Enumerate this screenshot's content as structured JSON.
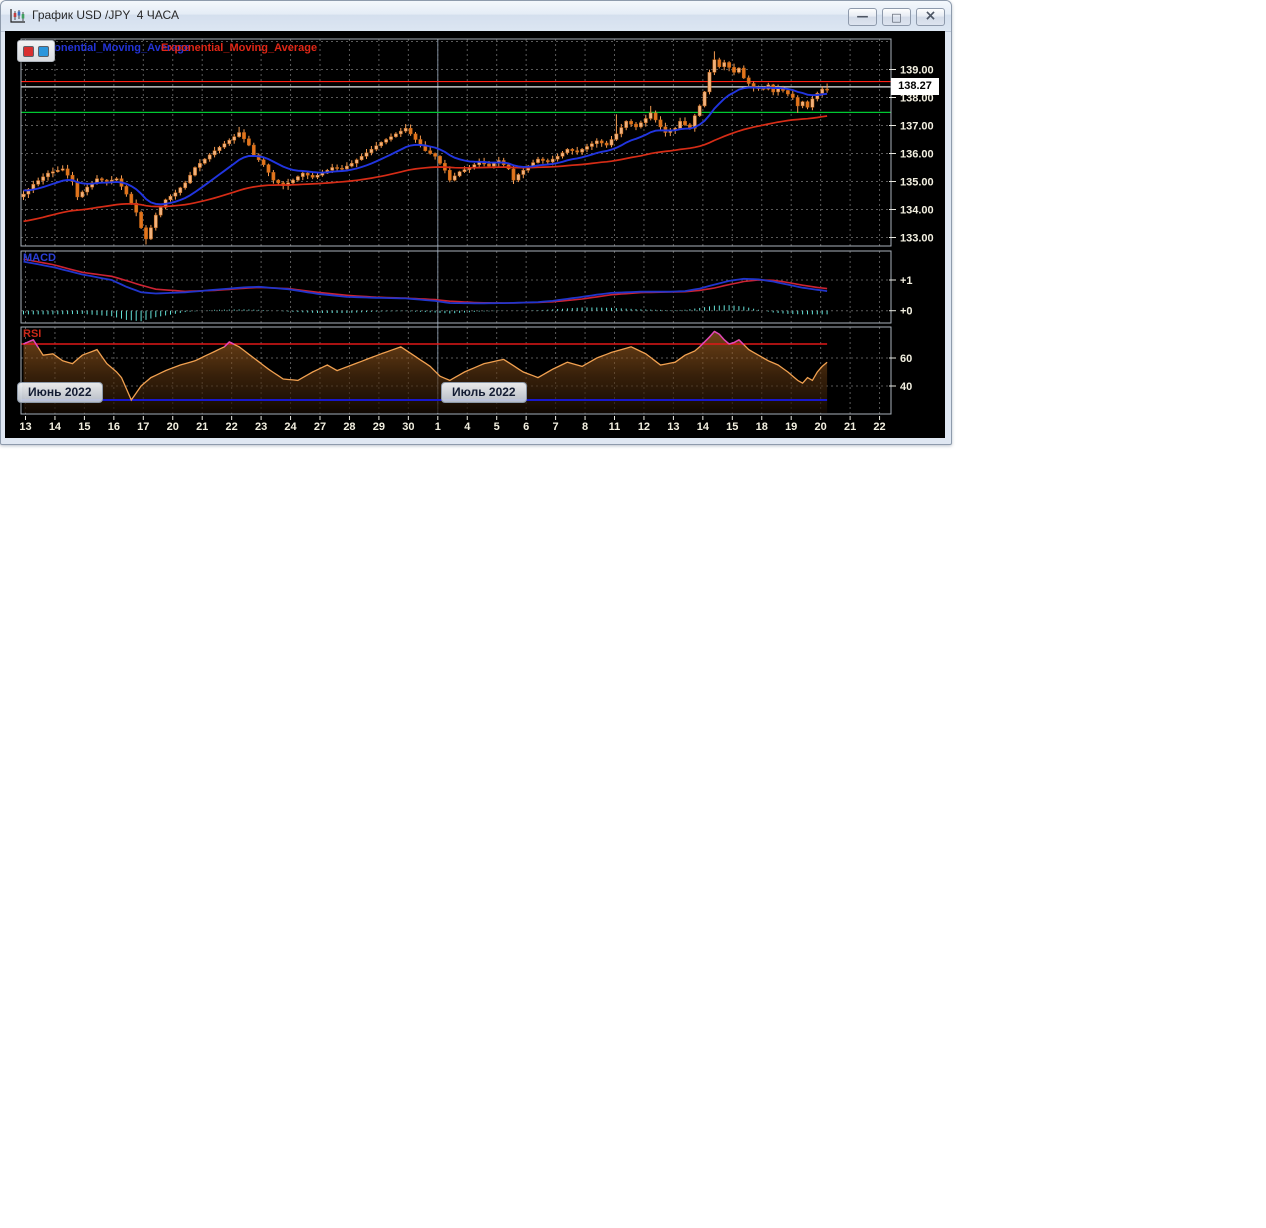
{
  "window": {
    "title": "График USD /JPY  4 ЧАСА",
    "icons": {
      "app": "candlestick-chart",
      "minimize": "—",
      "maximize": "□",
      "close": "×"
    }
  },
  "legend": {
    "items": [
      {
        "label": "Exponential_Moving_Average",
        "color": "#2233d8"
      },
      {
        "label": "Exponential_Moving_Average",
        "color": "#e02616"
      }
    ]
  },
  "mini_toolbar": {
    "buttons": [
      {
        "name": "red-marker",
        "color": "#d83030"
      },
      {
        "name": "blue-marker",
        "color": "#2a96dc"
      }
    ]
  },
  "pane_labels": {
    "macd": {
      "text": "MACD",
      "color": "#2b3fd8"
    },
    "rsi": {
      "text": "RSI",
      "color": "#c82818"
    }
  },
  "month_buttons": [
    {
      "label": "Июнь 2022"
    },
    {
      "label": "Июль 2022"
    }
  ],
  "price_tag": {
    "value": "138.27"
  },
  "axes": {
    "price_ticks": [
      "139.00",
      "138.00",
      "137.00",
      "136.00",
      "135.00",
      "134.00",
      "133.00"
    ],
    "macd_ticks": [
      {
        "label": "+1",
        "value": 1
      },
      {
        "label": "+0",
        "value": 0
      }
    ],
    "rsi_ticks": [
      {
        "label": "60",
        "value": 60
      },
      {
        "label": "40",
        "value": 40
      }
    ],
    "date_ticks": [
      "13",
      "14",
      "15",
      "16",
      "17",
      "20",
      "21",
      "22",
      "23",
      "24",
      "27",
      "28",
      "29",
      "30",
      "1",
      "4",
      "5",
      "6",
      "7",
      "8",
      "11",
      "12",
      "13",
      "14",
      "15",
      "18",
      "19",
      "20",
      "21",
      "22"
    ]
  },
  "chart_data": {
    "type": "candlestick",
    "symbol": "USD/JPY",
    "timeframe": "4 ЧАСА",
    "current_price": 138.27,
    "price_range": [
      132.7,
      140.1
    ],
    "candles_per_day": 6,
    "candle_count": 165,
    "open_first": 134.45,
    "close_keypoints": [
      [
        0,
        134.55
      ],
      [
        2,
        134.9
      ],
      [
        5,
        135.3
      ],
      [
        8,
        135.45
      ],
      [
        10,
        135.0
      ],
      [
        11,
        134.45
      ],
      [
        13,
        134.8
      ],
      [
        15,
        135.1
      ],
      [
        17,
        135.0
      ],
      [
        19,
        135.1
      ],
      [
        21,
        134.55
      ],
      [
        23,
        133.9
      ],
      [
        24,
        133.35
      ],
      [
        25,
        132.95
      ],
      [
        26,
        133.35
      ],
      [
        27,
        133.8
      ],
      [
        29,
        134.35
      ],
      [
        31,
        134.6
      ],
      [
        33,
        134.95
      ],
      [
        35,
        135.5
      ],
      [
        37,
        135.8
      ],
      [
        39,
        136.1
      ],
      [
        41,
        136.35
      ],
      [
        43,
        136.6
      ],
      [
        44,
        136.75
      ],
      [
        46,
        136.3
      ],
      [
        47,
        135.95
      ],
      [
        49,
        135.6
      ],
      [
        51,
        135.05
      ],
      [
        53,
        134.85
      ],
      [
        55,
        135.05
      ],
      [
        57,
        135.3
      ],
      [
        59,
        135.15
      ],
      [
        61,
        135.3
      ],
      [
        63,
        135.5
      ],
      [
        65,
        135.45
      ],
      [
        67,
        135.65
      ],
      [
        69,
        135.9
      ],
      [
        71,
        136.15
      ],
      [
        73,
        136.4
      ],
      [
        75,
        136.6
      ],
      [
        77,
        136.8
      ],
      [
        78,
        136.9
      ],
      [
        80,
        136.5
      ],
      [
        82,
        136.1
      ],
      [
        84,
        135.9
      ],
      [
        86,
        135.4
      ],
      [
        87,
        135.05
      ],
      [
        89,
        135.35
      ],
      [
        91,
        135.5
      ],
      [
        93,
        135.7
      ],
      [
        95,
        135.55
      ],
      [
        97,
        135.75
      ],
      [
        99,
        135.45
      ],
      [
        100,
        135.05
      ],
      [
        101,
        135.25
      ],
      [
        103,
        135.55
      ],
      [
        105,
        135.8
      ],
      [
        107,
        135.7
      ],
      [
        109,
        135.9
      ],
      [
        111,
        136.15
      ],
      [
        113,
        136.05
      ],
      [
        115,
        136.25
      ],
      [
        117,
        136.45
      ],
      [
        119,
        136.3
      ],
      [
        121,
        136.7
      ],
      [
        123,
        137.15
      ],
      [
        125,
        136.95
      ],
      [
        127,
        137.25
      ],
      [
        128,
        137.45
      ],
      [
        130,
        136.95
      ],
      [
        131,
        136.75
      ],
      [
        133,
        136.9
      ],
      [
        134,
        137.15
      ],
      [
        136,
        136.9
      ],
      [
        137,
        137.35
      ],
      [
        138,
        137.7
      ],
      [
        139,
        138.2
      ],
      [
        140,
        138.9
      ],
      [
        141,
        139.35
      ],
      [
        142,
        139.1
      ],
      [
        143,
        139.25
      ],
      [
        145,
        138.9
      ],
      [
        146,
        139.05
      ],
      [
        147,
        138.7
      ],
      [
        148,
        138.5
      ],
      [
        149,
        138.35
      ],
      [
        151,
        138.3
      ],
      [
        152,
        138.45
      ],
      [
        153,
        138.2
      ],
      [
        154,
        138.35
      ],
      [
        155,
        138.25
      ],
      [
        157,
        138.0
      ],
      [
        158,
        137.7
      ],
      [
        159,
        137.85
      ],
      [
        160,
        137.65
      ],
      [
        161,
        137.95
      ],
      [
        162,
        138.15
      ],
      [
        163,
        138.3
      ],
      [
        164,
        138.27
      ]
    ],
    "wick_overrides": {
      "25": {
        "low": 132.75
      },
      "44": {
        "high": 136.95
      },
      "78": {
        "high": 137.05
      },
      "121": {
        "high": 137.4
      },
      "128": {
        "high": 137.7
      },
      "141": {
        "high": 139.65
      },
      "158": {
        "low": 137.45
      },
      "164": {
        "high": 138.5
      }
    },
    "hlines": [
      {
        "name": "resistance-line",
        "color": "#ff2016",
        "value": 138.57
      },
      {
        "name": "current-price-line",
        "color": "#e8e8e8",
        "value": 138.38
      },
      {
        "name": "support-line",
        "color": "#00c832",
        "value": 137.47
      }
    ],
    "ema_fast": {
      "period": 16,
      "start": 134.7,
      "color": "#2135e0"
    },
    "ema_slow": {
      "period": 72,
      "start": 133.55,
      "color": "#d62c16"
    },
    "candle_colors": {
      "up": "#f2b27c",
      "down": "#e2741c",
      "wick": "#f49b52",
      "border": "#c86818"
    },
    "macd": {
      "line_color": "#2135cc",
      "signal_color": "#cc2333",
      "hist_color": "#63e0d6",
      "grid_values": [
        1,
        0
      ],
      "line_keypoints": [
        [
          0,
          1.6
        ],
        [
          6,
          1.42
        ],
        [
          12,
          1.18
        ],
        [
          18,
          1.0
        ],
        [
          21,
          0.78
        ],
        [
          24,
          0.6
        ],
        [
          27,
          0.56
        ],
        [
          33,
          0.6
        ],
        [
          39,
          0.68
        ],
        [
          45,
          0.76
        ],
        [
          48,
          0.78
        ],
        [
          54,
          0.7
        ],
        [
          60,
          0.55
        ],
        [
          66,
          0.45
        ],
        [
          72,
          0.42
        ],
        [
          78,
          0.4
        ],
        [
          84,
          0.32
        ],
        [
          87,
          0.25
        ],
        [
          93,
          0.24
        ],
        [
          99,
          0.25
        ],
        [
          105,
          0.28
        ],
        [
          108,
          0.32
        ],
        [
          114,
          0.45
        ],
        [
          117,
          0.52
        ],
        [
          120,
          0.58
        ],
        [
          126,
          0.62
        ],
        [
          132,
          0.62
        ],
        [
          135,
          0.64
        ],
        [
          138,
          0.72
        ],
        [
          141,
          0.85
        ],
        [
          144,
          0.97
        ],
        [
          147,
          1.04
        ],
        [
          150,
          1.02
        ],
        [
          153,
          0.95
        ],
        [
          156,
          0.85
        ],
        [
          159,
          0.75
        ],
        [
          162,
          0.68
        ],
        [
          164,
          0.64
        ]
      ],
      "signal_keypoints": [
        [
          0,
          1.68
        ],
        [
          6,
          1.5
        ],
        [
          12,
          1.25
        ],
        [
          18,
          1.12
        ],
        [
          21,
          0.98
        ],
        [
          24,
          0.83
        ],
        [
          27,
          0.7
        ],
        [
          33,
          0.63
        ],
        [
          39,
          0.66
        ],
        [
          45,
          0.73
        ],
        [
          48,
          0.76
        ],
        [
          54,
          0.72
        ],
        [
          60,
          0.6
        ],
        [
          66,
          0.5
        ],
        [
          72,
          0.44
        ],
        [
          78,
          0.41
        ],
        [
          84,
          0.36
        ],
        [
          87,
          0.31
        ],
        [
          93,
          0.26
        ],
        [
          99,
          0.25
        ],
        [
          105,
          0.27
        ],
        [
          108,
          0.29
        ],
        [
          114,
          0.38
        ],
        [
          117,
          0.45
        ],
        [
          120,
          0.52
        ],
        [
          126,
          0.59
        ],
        [
          132,
          0.61
        ],
        [
          135,
          0.62
        ],
        [
          138,
          0.66
        ],
        [
          141,
          0.74
        ],
        [
          144,
          0.85
        ],
        [
          147,
          0.95
        ],
        [
          150,
          1.0
        ],
        [
          153,
          0.99
        ],
        [
          156,
          0.92
        ],
        [
          159,
          0.83
        ],
        [
          162,
          0.76
        ],
        [
          164,
          0.72
        ]
      ]
    },
    "rsi": {
      "line_color": "#f0a050",
      "overbought_color": "#e040c0",
      "ob_line_color": "#e01818",
      "os_line_color": "#1818cc",
      "overbought": 70,
      "oversold": 30,
      "keypoints": [
        [
          0,
          70
        ],
        [
          2,
          73
        ],
        [
          4,
          62
        ],
        [
          6,
          63
        ],
        [
          8,
          58
        ],
        [
          10,
          56
        ],
        [
          12,
          62
        ],
        [
          15,
          66
        ],
        [
          17,
          56
        ],
        [
          19,
          50
        ],
        [
          20,
          46
        ],
        [
          22,
          30
        ],
        [
          24,
          40
        ],
        [
          26,
          46
        ],
        [
          29,
          51
        ],
        [
          32,
          55
        ],
        [
          35,
          58
        ],
        [
          38,
          63
        ],
        [
          41,
          68
        ],
        [
          42,
          71.5
        ],
        [
          44,
          68
        ],
        [
          47,
          60
        ],
        [
          50,
          52
        ],
        [
          53,
          45
        ],
        [
          56,
          44
        ],
        [
          59,
          50
        ],
        [
          62,
          55
        ],
        [
          64,
          51
        ],
        [
          67,
          55
        ],
        [
          70,
          59
        ],
        [
          73,
          63
        ],
        [
          77,
          68
        ],
        [
          80,
          61
        ],
        [
          83,
          54
        ],
        [
          85,
          47
        ],
        [
          87,
          44
        ],
        [
          90,
          50
        ],
        [
          94,
          56
        ],
        [
          98,
          59
        ],
        [
          102,
          50
        ],
        [
          105,
          46
        ],
        [
          108,
          52
        ],
        [
          111,
          57
        ],
        [
          114,
          54
        ],
        [
          117,
          60
        ],
        [
          120,
          64
        ],
        [
          124,
          68
        ],
        [
          127,
          63
        ],
        [
          130,
          55
        ],
        [
          133,
          57
        ],
        [
          135,
          62
        ],
        [
          137,
          65
        ],
        [
          138,
          68
        ],
        [
          140,
          75
        ],
        [
          141,
          79
        ],
        [
          142,
          77
        ],
        [
          143,
          73
        ],
        [
          144,
          70
        ],
        [
          145,
          71
        ],
        [
          146,
          73
        ],
        [
          148,
          66
        ],
        [
          150,
          62
        ],
        [
          152,
          58
        ],
        [
          154,
          55
        ],
        [
          156,
          50
        ],
        [
          158,
          44
        ],
        [
          159,
          42
        ],
        [
          160,
          46
        ],
        [
          161,
          44
        ],
        [
          162,
          50
        ],
        [
          163,
          54
        ],
        [
          164,
          57
        ]
      ]
    }
  }
}
